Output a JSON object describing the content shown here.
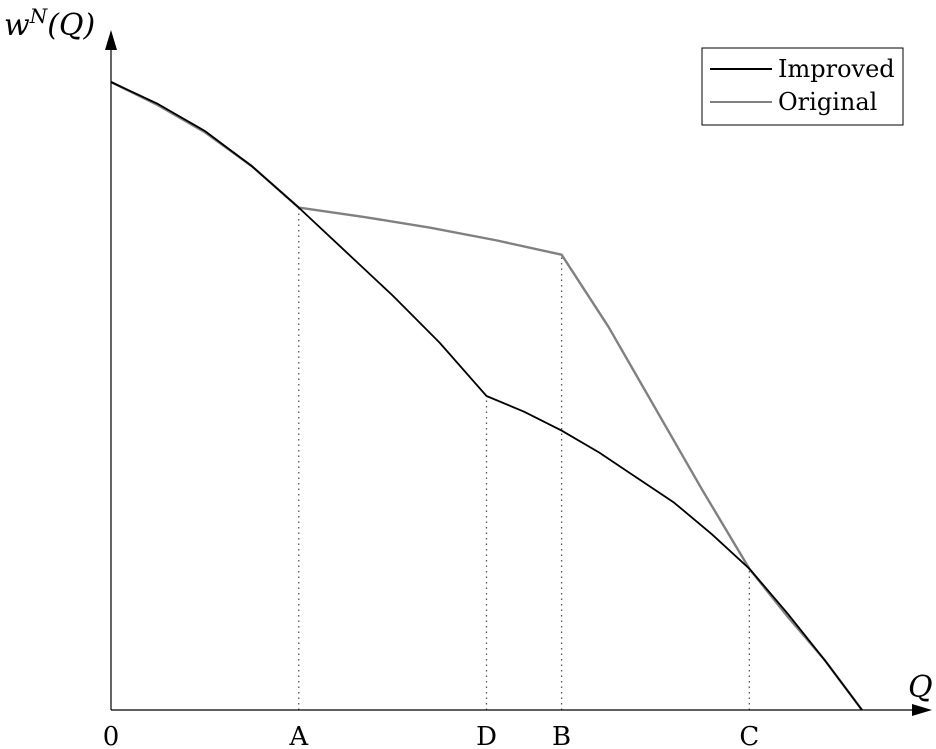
{
  "chart_data": {
    "type": "line",
    "title": "",
    "xlabel": "Q",
    "ylabel": "w^N(Q)",
    "ylabel_parts": {
      "base": "w",
      "sup": "N",
      "arg": "(Q)"
    },
    "xlim": [
      0,
      4
    ],
    "ylim": [
      0,
      1
    ],
    "x_ticks": [
      {
        "label": "0",
        "value": 0
      },
      {
        "label": "A",
        "value": 1
      },
      {
        "label": "D",
        "value": 2
      },
      {
        "label": "B",
        "value": 2.4
      },
      {
        "label": "C",
        "value": 3.4
      }
    ],
    "guides": [
      {
        "label": "A",
        "x": 1,
        "y": 0.8
      },
      {
        "label": "D",
        "x": 2,
        "y": 0.5
      },
      {
        "label": "B",
        "x": 2.4,
        "y": 0.725
      },
      {
        "label": "C",
        "x": 3.4,
        "y": 0.225
      }
    ],
    "series": [
      {
        "name": "Original",
        "color": "#808080",
        "x": [
          0,
          0.25,
          0.5,
          0.75,
          1,
          1.35,
          1.7,
          2.05,
          2.4,
          2.65,
          2.9,
          3.15,
          3.4,
          3.6,
          3.8,
          4
        ],
        "y": [
          1,
          0.963,
          0.92,
          0.866,
          0.8,
          0.785,
          0.768,
          0.748,
          0.725,
          0.61,
          0.48,
          0.35,
          0.225,
          0.15,
          0.08,
          0
        ]
      },
      {
        "name": "Improved",
        "color": "#000000",
        "x": [
          0,
          0.25,
          0.5,
          0.75,
          1,
          1.25,
          1.5,
          1.75,
          2,
          2.2,
          2.4,
          2.6,
          2.8,
          3,
          3.2,
          3.4,
          3.6,
          3.8,
          4
        ],
        "y": [
          1,
          0.965,
          0.922,
          0.866,
          0.8,
          0.73,
          0.66,
          0.585,
          0.5,
          0.475,
          0.445,
          0.41,
          0.37,
          0.33,
          0.28,
          0.225,
          0.155,
          0.08,
          0
        ]
      }
    ],
    "legend": {
      "position": "top-right",
      "entries": [
        "Improved",
        "Original"
      ]
    },
    "grid": false
  }
}
